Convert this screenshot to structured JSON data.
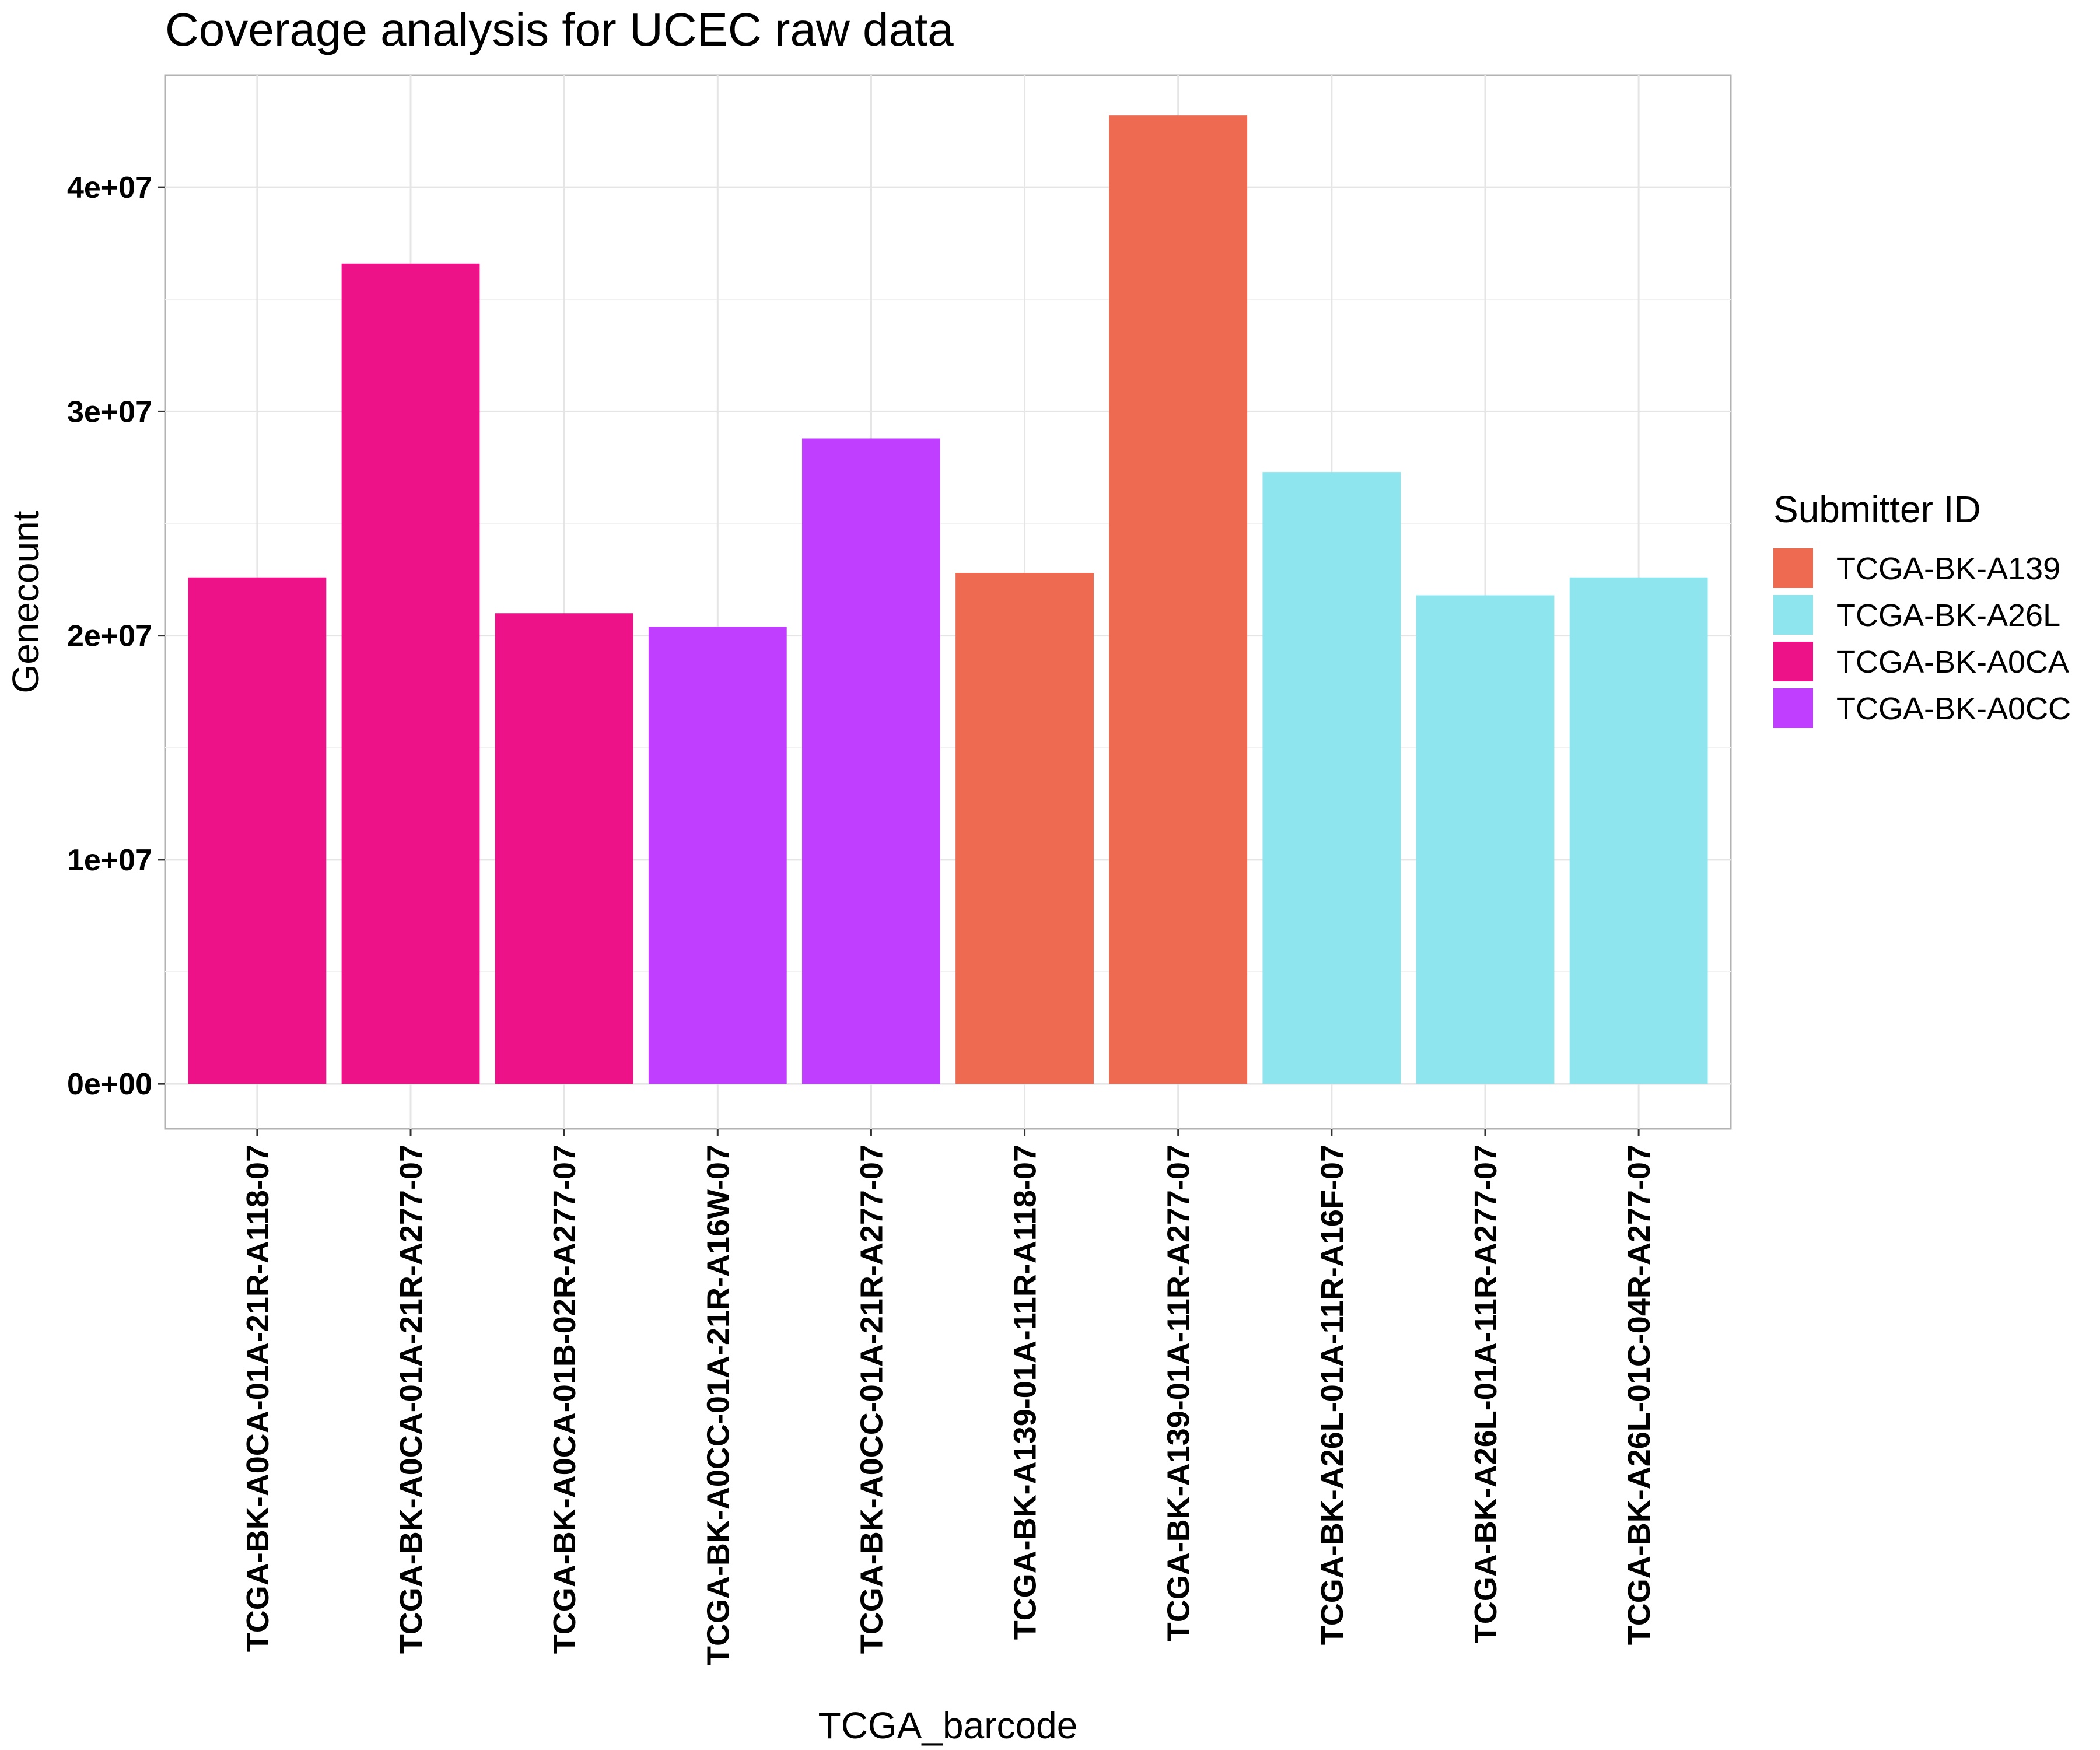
{
  "chart_data": {
    "type": "bar",
    "title": "Coverage analysis for UCEC raw data",
    "xlabel": "TCGA_barcode",
    "ylabel": "Genecount",
    "ylim": [
      -2000000,
      45000000
    ],
    "yticks": [
      0,
      10000000,
      20000000,
      30000000,
      40000000
    ],
    "ytick_labels": [
      "0e+00",
      "1e+07",
      "2e+07",
      "3e+07",
      "4e+07"
    ],
    "grid": true,
    "legend": {
      "title": "Submitter ID",
      "placement": "right",
      "entries": [
        {
          "name": "TCGA-BK-A139",
          "color": "#EE6A50"
        },
        {
          "name": "TCGA-BK-A26L",
          "color": "#8EE5EE"
        },
        {
          "name": "TCGA-BK-A0CA",
          "color": "#EE1289"
        },
        {
          "name": "TCGA-BK-A0CC",
          "color": "#BF3EFF"
        }
      ]
    },
    "categories": [
      "TCGA-BK-A0CA-01A-21R-A118-07",
      "TCGA-BK-A0CA-01A-21R-A277-07",
      "TCGA-BK-A0CA-01B-02R-A277-07",
      "TCGA-BK-A0CC-01A-21R-A16W-07",
      "TCGA-BK-A0CC-01A-21R-A277-07",
      "TCGA-BK-A139-01A-11R-A118-07",
      "TCGA-BK-A139-01A-11R-A277-07",
      "TCGA-BK-A26L-01A-11R-A16F-07",
      "TCGA-BK-A26L-01A-11R-A277-07",
      "TCGA-BK-A26L-01C-04R-A277-07"
    ],
    "values": [
      22600000,
      36600000,
      21000000,
      20400000,
      28800000,
      22800000,
      43200000,
      27300000,
      21800000,
      22600000
    ],
    "groups": [
      "TCGA-BK-A0CA",
      "TCGA-BK-A0CA",
      "TCGA-BK-A0CA",
      "TCGA-BK-A0CC",
      "TCGA-BK-A0CC",
      "TCGA-BK-A139",
      "TCGA-BK-A139",
      "TCGA-BK-A26L",
      "TCGA-BK-A26L",
      "TCGA-BK-A26L"
    ]
  }
}
